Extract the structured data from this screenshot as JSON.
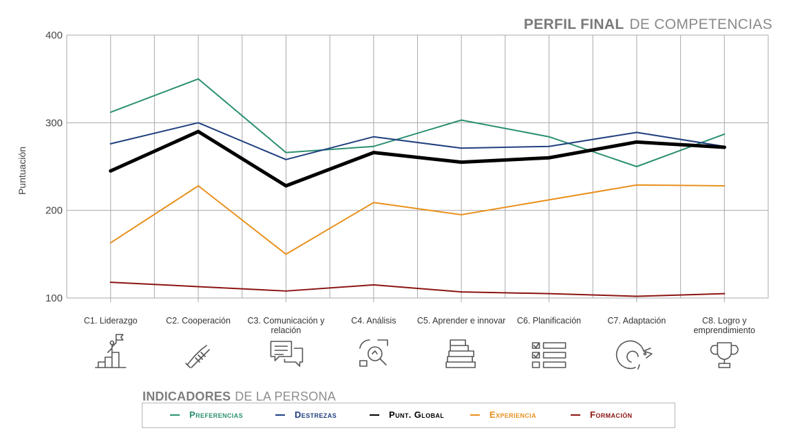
{
  "header": {
    "title_bold": "PERFIL FINAL",
    "title_light": "DE COMPETENCIAS"
  },
  "indicators": {
    "title_bold": "INDICADORES",
    "title_light": "DE LA PERSONA"
  },
  "icons": [
    "leadership-podium-icon",
    "handshake-icon",
    "chat-bubbles-icon",
    "magnifier-chart-icon",
    "books-stack-icon",
    "checklist-icon",
    "chameleon-icon",
    "trophy-icon"
  ],
  "chart_data": {
    "type": "line",
    "title": "PERFIL FINAL DE COMPETENCIAS",
    "ylabel": "Puntuación",
    "xlabel": "",
    "ylim": [
      100,
      400
    ],
    "yticks": [
      100,
      200,
      300,
      400
    ],
    "grid": true,
    "legend_position": "bottom",
    "categories": [
      "C1. Liderazgo",
      "C2. Cooperación",
      "C3. Comunicación y relación",
      "C4. Análisis",
      "C5. Aprender e innovar",
      "C6. Planificación",
      "C7. Adaptación",
      "C8. Logro y emprendimiento"
    ],
    "series": [
      {
        "name": "Preferencias",
        "color": "#2a8f72",
        "values": [
          312,
          350,
          266,
          273,
          303,
          284,
          250,
          287
        ]
      },
      {
        "name": "Destrezas",
        "color": "#1f3f7f",
        "values": [
          276,
          300,
          258,
          284,
          271,
          273,
          289,
          273
        ]
      },
      {
        "name": "Punt. Global",
        "color": "#000000",
        "values": [
          245,
          290,
          228,
          266,
          255,
          260,
          278,
          272
        ]
      },
      {
        "name": "Experiencia",
        "color": "#e8901d",
        "values": [
          163,
          228,
          150,
          209,
          195,
          212,
          229,
          228
        ]
      },
      {
        "name": "Formación",
        "color": "#8b1410",
        "values": [
          118,
          113,
          108,
          115,
          107,
          105,
          102,
          105
        ]
      }
    ]
  }
}
